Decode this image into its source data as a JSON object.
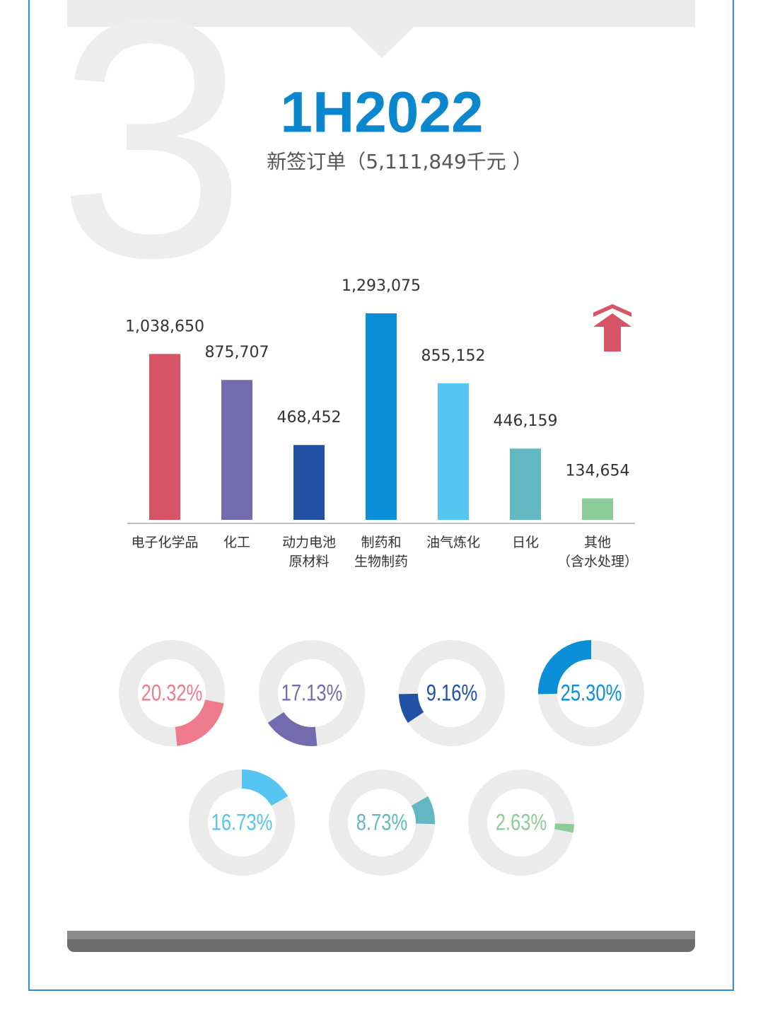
{
  "chart_data": [
    {
      "type": "bar",
      "title": "1H2022",
      "subtitle": "新签订单（5,111,849千元 ）",
      "categories": [
        "电子化学品",
        "化工",
        "动力电池\n原材料",
        "制药和\n生物制药",
        "油气炼化",
        "日化",
        "其他\n（含水处理）"
      ],
      "values": [
        1038650,
        875707,
        468452,
        1293075,
        855152,
        446159,
        134654
      ],
      "value_labels": [
        "1,038,650",
        "875,707",
        "468,452",
        "1,293,075",
        "855,152",
        "446,159",
        "134,654"
      ],
      "colors": [
        "#d65465",
        "#736bad",
        "#2150a4",
        "#0b8fd8",
        "#55c5f1",
        "#62b8c2",
        "#8ccc98"
      ]
    },
    {
      "type": "donut",
      "values": [
        20.32,
        17.13,
        9.16,
        25.3,
        16.73,
        8.73,
        2.63
      ],
      "value_labels": [
        "20.32%",
        "17.13%",
        "9.16%",
        "25.30%",
        "16.73%",
        "8.73%",
        "2.63%"
      ],
      "colors": [
        "#ee7a8c",
        "#736bad",
        "#2150a4",
        "#0b8fd8",
        "#55c5f1",
        "#62b8c2",
        "#8ccc98"
      ]
    }
  ]
}
